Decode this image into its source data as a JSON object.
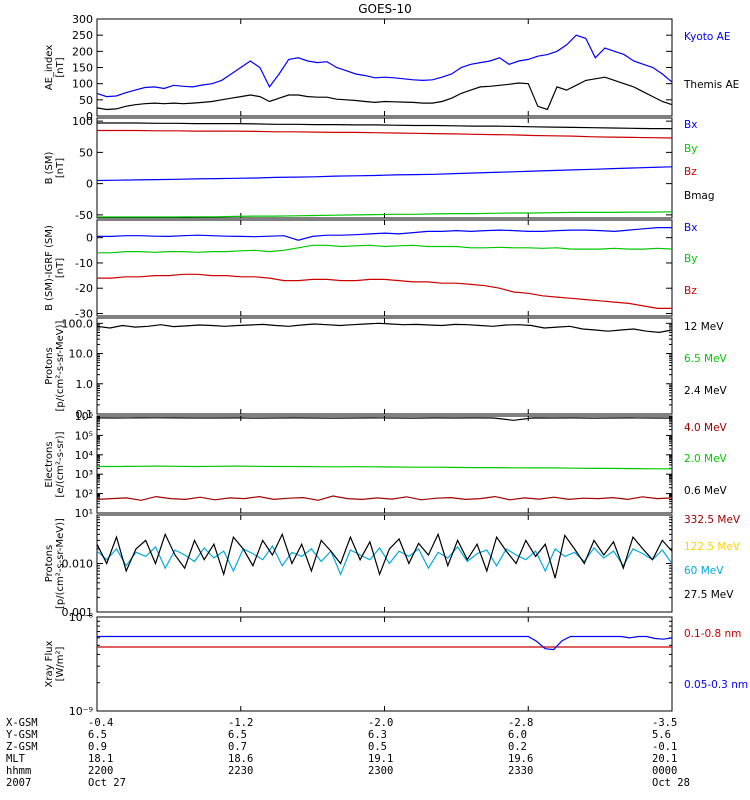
{
  "title": "GOES-10",
  "colors": {
    "black": "#000000",
    "blue": "#0000ff",
    "green": "#00c800",
    "red": "#cc0000",
    "darkred": "#a00000",
    "yellow": "#ffd200",
    "cyan": "#00aadd"
  },
  "chart_data": [
    {
      "id": "ae",
      "type": "line",
      "ylabel": [
        "AE_index",
        "[nT]"
      ],
      "scale": "linear",
      "ylim": [
        0,
        300
      ],
      "ticks": [
        0,
        50,
        100,
        150,
        200,
        250,
        300
      ],
      "tick_labels": [
        "0",
        "50",
        "100",
        "150",
        "200",
        "250",
        "300"
      ],
      "series": [
        {
          "name": "Kyoto AE",
          "color": "blue",
          "values": [
            70,
            60,
            62,
            72,
            80,
            88,
            90,
            85,
            95,
            92,
            90,
            96,
            100,
            110,
            130,
            150,
            170,
            150,
            90,
            130,
            175,
            180,
            170,
            165,
            168,
            150,
            140,
            130,
            125,
            118,
            120,
            118,
            115,
            112,
            110,
            112,
            120,
            130,
            150,
            160,
            165,
            170,
            180,
            160,
            170,
            175,
            185,
            190,
            200,
            220,
            250,
            240,
            180,
            210,
            200,
            190,
            170,
            160,
            150,
            130,
            105
          ]
        },
        {
          "name": "Themis AE",
          "color": "black",
          "values": [
            25,
            20,
            22,
            30,
            35,
            38,
            40,
            38,
            40,
            38,
            40,
            42,
            45,
            50,
            55,
            60,
            65,
            60,
            45,
            55,
            65,
            65,
            60,
            58,
            58,
            52,
            50,
            48,
            45,
            42,
            45,
            44,
            43,
            42,
            40,
            40,
            45,
            55,
            70,
            80,
            90,
            92,
            95,
            98,
            102,
            100,
            30,
            20,
            90,
            80,
            95,
            110,
            115,
            120,
            110,
            100,
            90,
            75,
            60,
            45,
            35
          ]
        }
      ]
    },
    {
      "id": "bgsm",
      "type": "line",
      "ylabel": [
        "B (SM)",
        "[nT]"
      ],
      "scale": "linear",
      "ylim": [
        -55,
        105
      ],
      "ticks": [
        -50,
        0,
        50,
        100
      ],
      "tick_labels": [
        "-50",
        "0",
        "50",
        "100"
      ],
      "series": [
        {
          "name": "Bx",
          "color": "blue",
          "values": [
            5,
            5.5,
            6,
            6.5,
            7,
            7.5,
            8,
            8.5,
            9,
            10,
            10.5,
            11,
            12,
            12.5,
            13,
            14,
            14.5,
            15,
            16,
            17,
            18,
            19,
            20,
            21,
            22,
            23,
            24,
            25,
            26,
            27
          ]
        },
        {
          "name": "By",
          "color": "green",
          "values": [
            -54,
            -54,
            -54,
            -53.5,
            -53.5,
            -53,
            -53,
            -52.5,
            -52,
            -52,
            -51.5,
            -51,
            -50.5,
            -50,
            -49.5,
            -49,
            -49,
            -48.5,
            -48,
            -48,
            -47.5,
            -47,
            -47,
            -46.5,
            -46,
            -46,
            -46,
            -45.5,
            -45.5,
            -45
          ]
        },
        {
          "name": "Bz",
          "color": "red",
          "values": [
            85,
            85,
            85,
            84.5,
            84.5,
            84,
            84,
            84,
            83.5,
            83,
            83,
            82.5,
            82,
            82,
            81.5,
            81,
            80.5,
            80,
            79.5,
            79,
            78.5,
            78,
            77,
            76.5,
            76,
            75,
            74.5,
            74,
            73.5,
            73
          ]
        },
        {
          "name": "Bmag",
          "color": "black",
          "values": [
            97,
            97,
            97,
            96.5,
            96.5,
            96,
            96,
            96,
            95.5,
            95,
            95,
            94.5,
            94.5,
            94,
            94,
            93.5,
            93,
            93,
            92.5,
            92,
            92,
            91.5,
            91,
            90.5,
            90,
            89.5,
            89,
            88.5,
            88,
            88
          ]
        }
      ]
    },
    {
      "id": "bdiff",
      "type": "line",
      "ylabel": [
        "B (SM)-IGRF (SM)",
        "[nT]"
      ],
      "scale": "linear",
      "ylim": [
        -31,
        7
      ],
      "ticks": [
        -30,
        -20,
        -10,
        0
      ],
      "tick_labels": [
        "-30",
        "-20",
        "-10",
        "0"
      ],
      "series": [
        {
          "name": "Bx",
          "color": "blue",
          "values": [
            0.5,
            0.5,
            0.8,
            0.8,
            0.6,
            0.5,
            0.8,
            1,
            0.8,
            0.6,
            0.5,
            0.4,
            0.6,
            0.8,
            -1,
            0.5,
            1,
            1,
            1.2,
            1.5,
            1.8,
            1.5,
            2,
            2.5,
            2.5,
            2.8,
            2.5,
            2.8,
            3,
            2.8,
            2.5,
            2.5,
            2.8,
            3,
            3,
            2.8,
            2.5,
            3,
            3.5,
            4,
            4
          ]
        },
        {
          "name": "By",
          "color": "green",
          "values": [
            -6,
            -6,
            -5.5,
            -5.5,
            -5.8,
            -5.5,
            -5.5,
            -5.8,
            -5.5,
            -5.5,
            -5.2,
            -5,
            -5.5,
            -5,
            -4,
            -3,
            -3,
            -3.5,
            -3.2,
            -3,
            -3.5,
            -3.2,
            -3,
            -3.5,
            -3.5,
            -3.5,
            -4,
            -4,
            -3.8,
            -4,
            -4,
            -4.2,
            -4,
            -4.5,
            -4.5,
            -4.5,
            -4.2,
            -4.5,
            -4.5,
            -4.2,
            -4.5
          ]
        },
        {
          "name": "Bz",
          "color": "red",
          "values": [
            -16,
            -16,
            -15.5,
            -15.5,
            -15,
            -15,
            -14.5,
            -14.5,
            -15,
            -15,
            -15.5,
            -15.5,
            -16,
            -17,
            -17,
            -16.5,
            -16.5,
            -17,
            -17,
            -16.5,
            -16.5,
            -17,
            -17.5,
            -17.5,
            -18,
            -18,
            -18.5,
            -19,
            -20,
            -21.5,
            -22,
            -23,
            -23.5,
            -24,
            -24.5,
            -25,
            -25.5,
            -26,
            -27,
            -28,
            -28
          ]
        }
      ]
    },
    {
      "id": "protons",
      "type": "line",
      "ylabel": [
        "Protons",
        "[p/(cm²-s-sr-MeV)]"
      ],
      "scale": "log",
      "ylim": [
        0.1,
        150
      ],
      "ticks": [
        0.1,
        1,
        10,
        100
      ],
      "tick_labels": [
        "0.1",
        "1.0",
        "10.0",
        "100.0"
      ],
      "series": [
        {
          "name": "12 MeV",
          "color": "black",
          "values": [
            80,
            70,
            85,
            75,
            80,
            90,
            78,
            82,
            88,
            85,
            80,
            85,
            88,
            92,
            85,
            80,
            88,
            95,
            90,
            85,
            90,
            95,
            100,
            95,
            90,
            92,
            88,
            85,
            92,
            90,
            85,
            80,
            88,
            90,
            85,
            70,
            75,
            80,
            65,
            60,
            55,
            60,
            65,
            55,
            50,
            60
          ]
        },
        {
          "name": "6.5 MeV",
          "color": "green",
          "values": []
        },
        {
          "name": "2.4 MeV",
          "color": "black",
          "values": []
        }
      ]
    },
    {
      "id": "electrons",
      "type": "line",
      "ylabel": [
        "Electrons",
        "[e/(cm²-s-sr)]"
      ],
      "scale": "log",
      "ylim": [
        10,
        1000000
      ],
      "ticks": [
        10,
        100,
        1000,
        10000,
        100000,
        1000000
      ],
      "tick_labels": [
        "10¹",
        "10²",
        "10³",
        "10⁴",
        "10⁵",
        "10⁶"
      ],
      "series": [
        {
          "name": "4.0 MeV",
          "color": "darkred",
          "values": [
            50,
            55,
            60,
            45,
            70,
            55,
            50,
            65,
            48,
            60,
            55,
            70,
            50,
            58,
            62,
            45,
            75,
            55,
            50,
            60,
            52,
            68,
            48,
            58,
            62,
            50,
            55,
            70,
            48,
            60,
            52,
            65,
            50,
            58,
            55,
            62,
            50,
            68,
            55,
            60
          ]
        },
        {
          "name": "2.0 MeV",
          "color": "green",
          "values": [
            2500,
            2500,
            2550,
            2600,
            2550,
            2500,
            2550,
            2600,
            2550,
            2500,
            2500,
            2450,
            2400,
            2450,
            2400,
            2350,
            2300,
            2300,
            2250,
            2200,
            2200,
            2150,
            2100,
            2100,
            2050,
            2000,
            2000,
            1950,
            1900,
            1900
          ]
        },
        {
          "name": "0.6 MeV",
          "color": "black",
          "values": [
            800000,
            790000,
            800000,
            810000,
            800000,
            790000,
            790000,
            800000,
            780000,
            790000,
            800000,
            790000,
            780000,
            790000,
            800000,
            790000,
            780000,
            800000,
            790000,
            800000,
            790000,
            600000,
            800000,
            790000,
            800000,
            780000,
            790000,
            800000,
            790000,
            780000
          ]
        }
      ]
    },
    {
      "id": "protons2",
      "type": "line",
      "ylabel": [
        "Protons",
        "[p/(cm²-s-sr-MeV)]"
      ],
      "scale": "log",
      "ylim": [
        0.001,
        0.1
      ],
      "ticks": [
        0.001,
        0.01,
        0.1
      ],
      "tick_labels": [
        "0.001",
        "0.010",
        ""
      ],
      "series": [
        {
          "name": "332.5 MeV",
          "color": "darkred",
          "values": []
        },
        {
          "name": "122.5 MeV",
          "color": "yellow",
          "values": []
        },
        {
          "name": "60 MeV",
          "color": "cyan",
          "values": [
            0.018,
            0.012,
            0.02,
            0.009,
            0.017,
            0.014,
            0.022,
            0.008,
            0.019,
            0.015,
            0.011,
            0.021,
            0.013,
            0.018,
            0.007,
            0.02,
            0.016,
            0.012,
            0.023,
            0.009,
            0.017,
            0.014,
            0.02,
            0.011,
            0.018,
            0.006,
            0.019,
            0.015,
            0.012,
            0.021,
            0.01,
            0.018,
            0.014,
            0.02,
            0.008,
            0.017,
            0.013,
            0.022,
            0.011,
            0.016,
            0.019,
            0.009,
            0.02,
            0.015,
            0.012,
            0.018,
            0.007,
            0.02,
            0.014,
            0.017,
            0.011,
            0.021,
            0.013,
            0.018,
            0.009,
            0.02,
            0.016,
            0.012,
            0.019,
            0.01
          ]
        },
        {
          "name": "27.5 MeV",
          "color": "black",
          "values": [
            0.025,
            0.01,
            0.035,
            0.007,
            0.02,
            0.03,
            0.01,
            0.04,
            0.015,
            0.008,
            0.03,
            0.012,
            0.025,
            0.006,
            0.035,
            0.02,
            0.009,
            0.03,
            0.015,
            0.04,
            0.01,
            0.025,
            0.007,
            0.03,
            0.018,
            0.01,
            0.035,
            0.012,
            0.028,
            0.006,
            0.02,
            0.032,
            0.01,
            0.026,
            0.015,
            0.04,
            0.009,
            0.03,
            0.012,
            0.025,
            0.007,
            0.035,
            0.018,
            0.01,
            0.03,
            0.014,
            0.025,
            0.005,
            0.038,
            0.02,
            0.01,
            0.03,
            0.015,
            0.028,
            0.008,
            0.035,
            0.02,
            0.012,
            0.03,
            0.018
          ]
        }
      ]
    },
    {
      "id": "xray",
      "type": "line",
      "ylabel": [
        "Xray Flux",
        "[W/m²]"
      ],
      "scale": "log",
      "ylim": [
        1e-09,
        1e-08
      ],
      "ticks": [
        1e-09,
        1e-08
      ],
      "tick_labels": [
        "10⁻⁹",
        "10⁻⁸"
      ],
      "series": [
        {
          "name": "0.1-0.8 nm",
          "color": "red",
          "values": [
            4.8e-09,
            4.8e-09
          ]
        },
        {
          "name": "0.05-0.3 nm",
          "color": "blue",
          "values": [
            6.2e-09,
            6.2e-09,
            6.2e-09,
            6.2e-09,
            6.2e-09,
            6.2e-09,
            6.2e-09,
            6.2e-09,
            6.2e-09,
            6.2e-09,
            6.2e-09,
            6.2e-09,
            6.2e-09,
            6.2e-09,
            6.2e-09,
            6.2e-09,
            6.2e-09,
            6.2e-09,
            6.2e-09,
            6.2e-09,
            6.2e-09,
            6.2e-09,
            6.2e-09,
            6.2e-09,
            6.2e-09,
            6.2e-09,
            6.2e-09,
            6.2e-09,
            6.2e-09,
            6.2e-09,
            6.2e-09,
            6.2e-09,
            6.2e-09,
            6.2e-09,
            6.2e-09,
            6.2e-09,
            6.2e-09,
            6.2e-09,
            6.2e-09,
            6.2e-09,
            6.2e-09,
            6.2e-09,
            6.2e-09,
            6.2e-09,
            6.2e-09,
            6.2e-09,
            6.2e-09,
            6.2e-09,
            6.2e-09,
            6.2e-09,
            6.2e-09,
            6.2e-09,
            5.5e-09,
            4.6e-09,
            4.5e-09,
            5.6e-09,
            6.2e-09,
            6.2e-09,
            6.2e-09,
            6.2e-09,
            6.2e-09,
            6.2e-09,
            6.2e-09,
            6e-09,
            6.2e-09,
            6.2e-09,
            5.9e-09,
            5.8e-09,
            6e-09
          ]
        }
      ]
    }
  ],
  "orbit": {
    "labels": [
      "X-GSM",
      "Y-GSM",
      "Z-GSM",
      "MLT",
      "hhmm",
      "2007"
    ],
    "columns": [
      [
        "-0.4",
        "6.5",
        "0.9",
        "18.1",
        "2200",
        "Oct 27"
      ],
      [
        "-1.2",
        "6.5",
        "0.7",
        "18.6",
        "2230",
        ""
      ],
      [
        "-2.0",
        "6.3",
        "0.5",
        "19.1",
        "2300",
        ""
      ],
      [
        "-2.8",
        "6.0",
        "0.2",
        "19.6",
        "2330",
        ""
      ],
      [
        "-3.5",
        "5.6",
        "-0.1",
        "20.1",
        "0000",
        "Oct 28"
      ]
    ]
  }
}
